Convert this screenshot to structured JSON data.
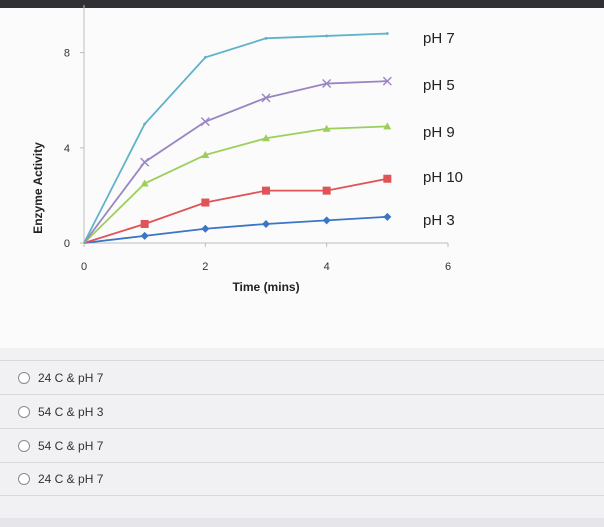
{
  "chart_data": {
    "type": "line",
    "ylabel": "Enzyme Activity",
    "xlabel": "Time (mins)",
    "x_ticks": [
      "0",
      "2",
      "4",
      "6"
    ],
    "y_ticks": [
      "0",
      "4",
      "8"
    ],
    "xlim": [
      0,
      6
    ],
    "ylim": [
      0,
      10
    ],
    "x": [
      0,
      1,
      2,
      3,
      4,
      5
    ],
    "grid": false,
    "legend_placement": "right",
    "series": [
      {
        "name": "pH 7",
        "color": "#5fb3c9",
        "marker": "none",
        "values": [
          0,
          5,
          7.8,
          8.6,
          8.7,
          8.8
        ]
      },
      {
        "name": "pH 5",
        "color": "#9a85c2",
        "marker": "x",
        "values": [
          0,
          3.4,
          5.1,
          6.1,
          6.7,
          6.8
        ]
      },
      {
        "name": "pH 9",
        "color": "#9ccf5a",
        "marker": "triangle",
        "values": [
          0,
          2.5,
          3.7,
          4.4,
          4.8,
          4.9
        ]
      },
      {
        "name": "pH 10",
        "color": "#e05357",
        "marker": "square",
        "values": [
          0,
          0.8,
          1.7,
          2.2,
          2.2,
          2.7
        ]
      },
      {
        "name": "pH 3",
        "color": "#3a75c6",
        "marker": "diamond",
        "values": [
          0,
          0.3,
          0.6,
          0.8,
          0.95,
          1.1
        ]
      }
    ]
  },
  "options": [
    {
      "label": "24 C & pH 7"
    },
    {
      "label": "54 C & pH 3"
    },
    {
      "label": "54 C & pH 7"
    },
    {
      "label": "24 C & pH 7"
    }
  ]
}
